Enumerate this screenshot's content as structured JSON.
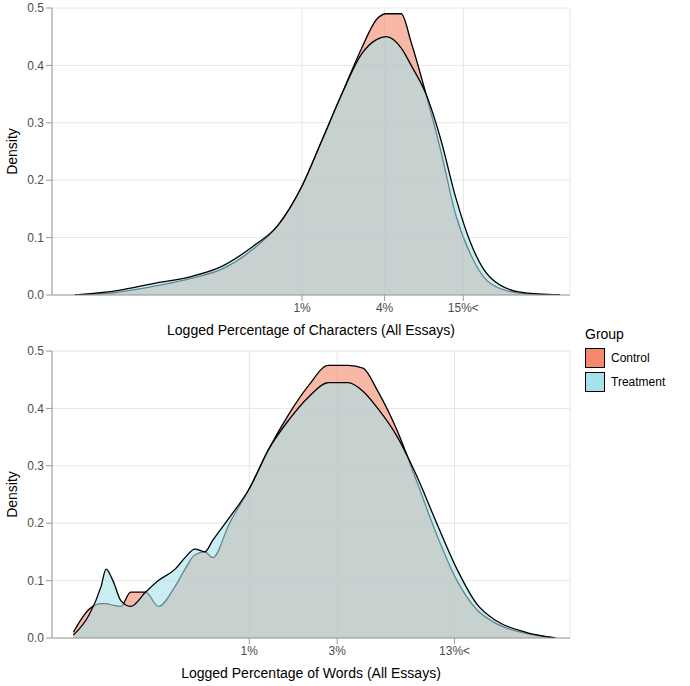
{
  "chart_data": [
    {
      "type": "area",
      "x_label": "Logged Percentage of Characters (All Essays)",
      "y_label": "Density",
      "log": "x",
      "grid": true,
      "xlim": [
        0.015,
        90
      ],
      "xticks": [
        {
          "value": 1,
          "label": "1%"
        },
        {
          "value": 4,
          "label": "4%"
        },
        {
          "value": 15,
          "label": "15%<"
        }
      ],
      "ylim": [
        0,
        0.5
      ],
      "yticks": [
        {
          "value": 0,
          "label": "0.0"
        },
        {
          "value": 0.1,
          "label": "0.1"
        },
        {
          "value": 0.2,
          "label": "0.2"
        },
        {
          "value": 0.3,
          "label": "0.3"
        },
        {
          "value": 0.4,
          "label": "0.4"
        },
        {
          "value": 0.5,
          "label": "0.5"
        }
      ],
      "x": [
        0.022,
        0.046,
        0.082,
        0.16,
        0.26,
        0.44,
        0.66,
        1,
        1.4,
        1.95,
        2.72,
        3.49,
        4.12,
        5.29,
        6.25,
        8.02,
        10.3,
        13.2,
        17,
        23.7,
        39.1,
        76
      ],
      "series": [
        {
          "name": "Control",
          "color": "#F4896B",
          "values": [
            0,
            0.005,
            0.015,
            0.03,
            0.045,
            0.08,
            0.12,
            0.19,
            0.27,
            0.35,
            0.43,
            0.48,
            0.49,
            0.49,
            0.44,
            0.35,
            0.25,
            0.14,
            0.07,
            0.02,
            0.003,
            0
          ]
        },
        {
          "name": "Treatment",
          "color": "#A6E1EC",
          "values": [
            0,
            0.008,
            0.02,
            0.033,
            0.05,
            0.085,
            0.12,
            0.19,
            0.27,
            0.35,
            0.42,
            0.445,
            0.45,
            0.43,
            0.4,
            0.35,
            0.27,
            0.17,
            0.09,
            0.03,
            0.005,
            0
          ]
        }
      ]
    },
    {
      "type": "area",
      "x_label": "Logged Percentage of Words (All Essays)",
      "y_label": "Density",
      "log": "x",
      "grid": true,
      "legend": "right",
      "legend_title": "Group",
      "xlim": [
        0.085,
        55
      ],
      "xticks": [
        {
          "value": 1,
          "label": "1%"
        },
        {
          "value": 3,
          "label": "3%"
        },
        {
          "value": 13,
          "label": "13%<"
        }
      ],
      "ylim": [
        0,
        0.5
      ],
      "yticks": [
        {
          "value": 0,
          "label": "0.0"
        },
        {
          "value": 0.1,
          "label": "0.1"
        },
        {
          "value": 0.2,
          "label": "0.2"
        },
        {
          "value": 0.3,
          "label": "0.3"
        },
        {
          "value": 0.4,
          "label": "0.4"
        },
        {
          "value": 0.5,
          "label": "0.5"
        }
      ],
      "x": [
        0.111,
        0.135,
        0.157,
        0.167,
        0.182,
        0.201,
        0.227,
        0.274,
        0.321,
        0.396,
        0.448,
        0.507,
        0.574,
        0.633,
        0.781,
        1,
        1.28,
        1.64,
        2.1,
        2.69,
        3.44,
        4.14,
        4.98,
        6.37,
        8.16,
        10.4,
        13.4,
        17.1,
        21.9,
        31.7,
        45.9
      ],
      "series": [
        {
          "name": "Control",
          "color": "#F4896B",
          "values": [
            0.01,
            0.05,
            0.06,
            0.06,
            0.057,
            0.055,
            0.08,
            0.08,
            0.055,
            0.09,
            0.12,
            0.145,
            0.15,
            0.14,
            0.2,
            0.26,
            0.33,
            0.39,
            0.44,
            0.475,
            0.475,
            0.47,
            0.43,
            0.36,
            0.27,
            0.18,
            0.1,
            0.05,
            0.025,
            0.008,
            0
          ]
        },
        {
          "name": "Treatment",
          "color": "#A6E1EC",
          "values": [
            0.005,
            0.04,
            0.09,
            0.12,
            0.1,
            0.065,
            0.055,
            0.08,
            0.1,
            0.12,
            0.14,
            0.155,
            0.15,
            0.17,
            0.21,
            0.26,
            0.33,
            0.38,
            0.42,
            0.445,
            0.445,
            0.43,
            0.4,
            0.35,
            0.28,
            0.2,
            0.12,
            0.06,
            0.03,
            0.01,
            0
          ]
        }
      ]
    }
  ]
}
